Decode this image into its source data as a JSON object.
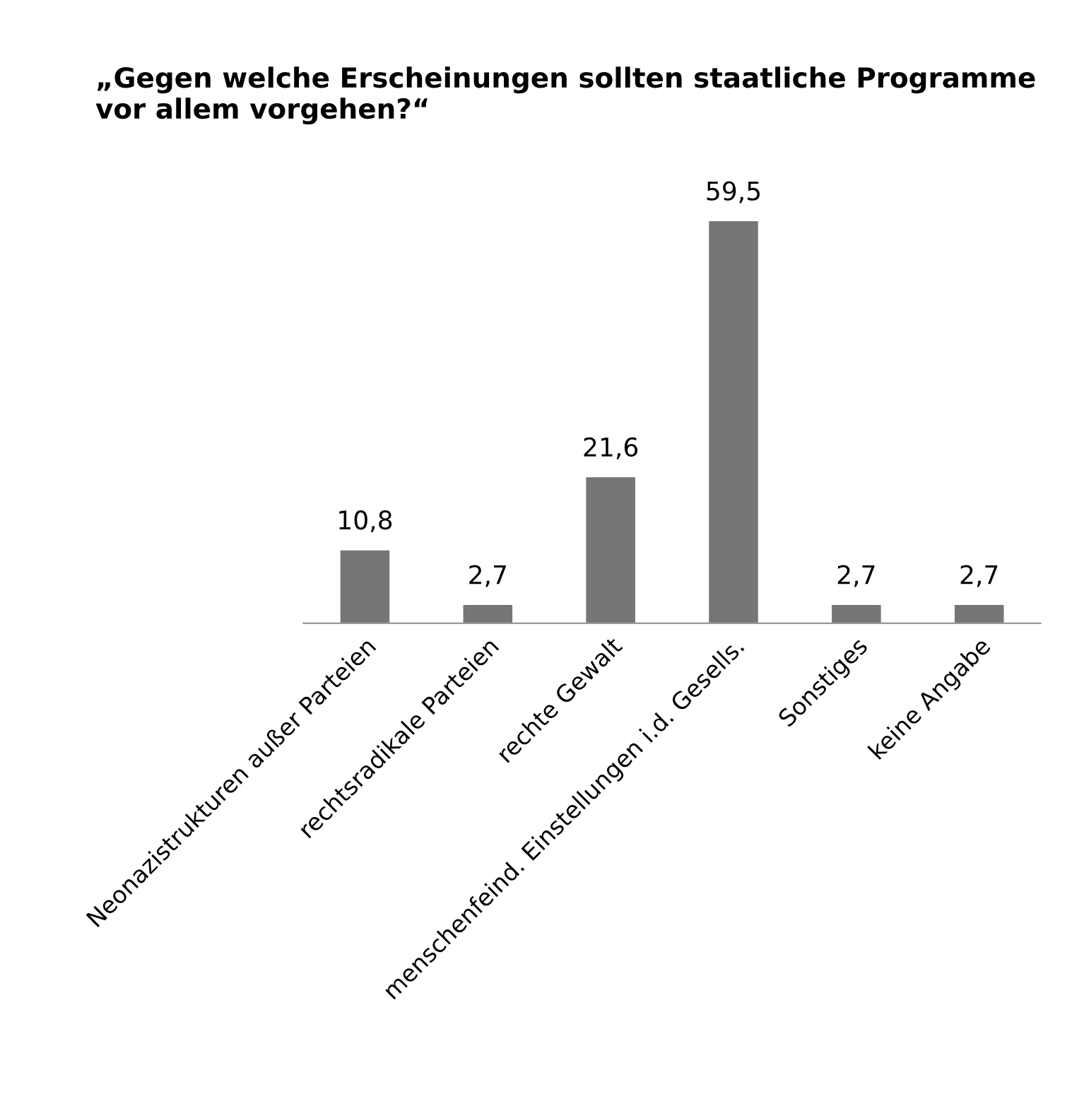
{
  "chart_data": {
    "type": "bar",
    "title": "„Gegen welche Erscheinungen sollten staatliche Programme vor allem vorgehen?“",
    "categories": [
      "Neonazistrukturen außer Parteien",
      "rechtsradikale Parteien",
      "rechte Gewalt",
      "menschenfeind. Einstellungen i.d. Gesells.",
      "Sonstiges",
      "keine Angabe"
    ],
    "values": [
      10.8,
      2.7,
      21.6,
      59.5,
      2.7,
      2.7
    ],
    "value_labels": [
      "10,8",
      "2,7",
      "21,6",
      "59,5",
      "2,7",
      "2,7"
    ],
    "color": "#767676",
    "tick_labels": "x",
    "grid": false,
    "legend": false
  }
}
